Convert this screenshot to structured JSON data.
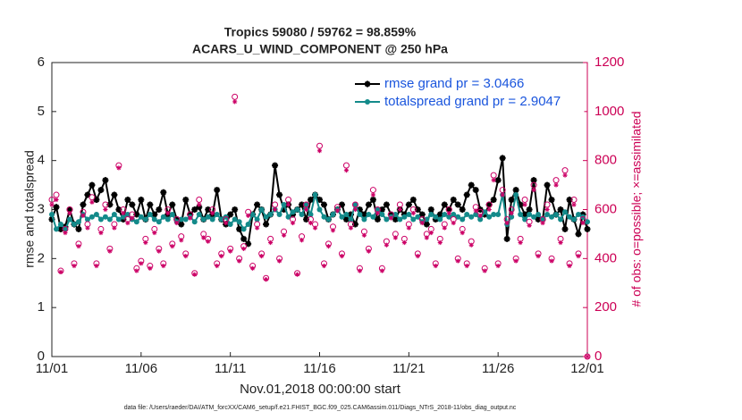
{
  "chart_data": {
    "type": "line",
    "title": "Tropics 59080 / 59762 = 98.859%",
    "subtitle": "ACARS_U_WIND_COMPONENT @ 250 hPa",
    "xlabel": "Nov.01,2018 00:00:00 start",
    "ylabel": "rmse and totalspread",
    "y2label": "# of obs: o=possible; ×=assimilated",
    "footnote": "data file: /Users/raeder/DAI/ATM_forcXX/CAM6_setup/f.e21.FHIST_BGC.f09_025.CAM6assim.011/Diags_NTrS_2018-11/obs_diag_output.nc",
    "xlim": [
      0,
      30
    ],
    "xticks": [
      {
        "value": 0,
        "label": "11/01"
      },
      {
        "value": 5,
        "label": "11/06"
      },
      {
        "value": 10,
        "label": "11/11"
      },
      {
        "value": 15,
        "label": "11/16"
      },
      {
        "value": 20,
        "label": "11/21"
      },
      {
        "value": 25,
        "label": "11/26"
      },
      {
        "value": 30,
        "label": "12/01"
      }
    ],
    "ylim": [
      0,
      6
    ],
    "yticks": [
      0,
      1,
      2,
      3,
      4,
      5,
      6
    ],
    "y2lim": [
      0,
      1200
    ],
    "y2ticks": [
      0,
      200,
      400,
      600,
      800,
      1000,
      1200
    ],
    "y2color": "#cc0055",
    "legend": "upper right",
    "x": [
      0,
      0.25,
      0.5,
      0.75,
      1,
      1.25,
      1.5,
      1.75,
      2,
      2.25,
      2.5,
      2.75,
      3,
      3.25,
      3.5,
      3.75,
      4,
      4.25,
      4.5,
      4.75,
      5,
      5.25,
      5.5,
      5.75,
      6,
      6.25,
      6.5,
      6.75,
      7,
      7.25,
      7.5,
      7.75,
      8,
      8.25,
      8.5,
      8.75,
      9,
      9.25,
      9.5,
      9.75,
      10,
      10.25,
      10.5,
      10.75,
      11,
      11.25,
      11.5,
      11.75,
      12,
      12.25,
      12.5,
      12.75,
      13,
      13.25,
      13.5,
      13.75,
      14,
      14.25,
      14.5,
      14.75,
      15,
      15.25,
      15.5,
      15.75,
      16,
      16.25,
      16.5,
      16.75,
      17,
      17.25,
      17.5,
      17.75,
      18,
      18.25,
      18.5,
      18.75,
      19,
      19.25,
      19.5,
      19.75,
      20,
      20.25,
      20.5,
      20.75,
      21,
      21.25,
      21.5,
      21.75,
      22,
      22.25,
      22.5,
      22.75,
      23,
      23.25,
      23.5,
      23.75,
      24,
      24.25,
      24.5,
      24.75,
      25,
      25.25,
      25.5,
      25.75,
      26,
      26.25,
      26.5,
      26.75,
      27,
      27.25,
      27.5,
      27.75,
      28,
      28.25,
      28.5,
      28.75,
      29,
      29.25,
      29.5,
      29.75,
      30
    ],
    "series": [
      {
        "name": "rmse grand pr = 3.0466",
        "color": "#000000",
        "marker": "star",
        "values": [
          2.8,
          3.05,
          2.6,
          2.65,
          3.0,
          2.7,
          2.6,
          3.1,
          3.3,
          3.5,
          3.2,
          3.4,
          3.6,
          3.1,
          3.3,
          3.0,
          2.8,
          3.2,
          3.1,
          2.9,
          3.2,
          2.8,
          3.1,
          2.9,
          3.0,
          3.35,
          2.9,
          3.1,
          2.8,
          2.7,
          3.2,
          2.9,
          3.0,
          3.05,
          2.8,
          3.0,
          2.9,
          3.4,
          2.8,
          2.7,
          2.9,
          3.0,
          2.6,
          2.4,
          2.3,
          2.9,
          3.1,
          3.0,
          2.7,
          2.9,
          3.9,
          3.3,
          3.0,
          3.1,
          2.9,
          3.0,
          3.1,
          2.8,
          3.2,
          3.3,
          3.2,
          3.1,
          2.8,
          2.9,
          3.0,
          3.1,
          2.8,
          2.9,
          2.7,
          3.0,
          2.9,
          3.1,
          3.2,
          2.8,
          3.0,
          3.1,
          2.9,
          2.8,
          3.0,
          2.9,
          3.1,
          3.2,
          3.0,
          2.9,
          2.7,
          3.0,
          2.8,
          2.9,
          3.1,
          3.0,
          3.2,
          3.1,
          3.0,
          3.3,
          3.5,
          3.4,
          3.0,
          2.9,
          3.1,
          3.2,
          3.6,
          4.05,
          2.4,
          3.2,
          3.4,
          3.1,
          2.9,
          3.0,
          3.6,
          2.8,
          2.8,
          3.5,
          3.2,
          2.9,
          3.0,
          2.6,
          3.2,
          2.8,
          2.5,
          2.9,
          2.6
        ]
      },
      {
        "name": "totalspread grand pr = 2.9047",
        "color": "#138a8a",
        "marker": "dot",
        "values": [
          2.9,
          2.6,
          2.7,
          2.6,
          2.8,
          2.7,
          2.75,
          2.9,
          2.8,
          2.85,
          2.9,
          2.8,
          2.85,
          2.8,
          2.9,
          2.8,
          2.85,
          2.9,
          2.8,
          2.75,
          2.85,
          2.8,
          2.9,
          2.8,
          2.75,
          2.85,
          2.8,
          2.9,
          2.75,
          2.8,
          2.8,
          2.85,
          2.75,
          2.9,
          2.8,
          2.85,
          2.8,
          2.9,
          2.8,
          2.85,
          2.7,
          2.8,
          2.75,
          2.6,
          2.7,
          2.9,
          2.8,
          3.0,
          2.85,
          2.9,
          3.0,
          2.9,
          3.1,
          2.85,
          2.95,
          3.0,
          2.9,
          3.1,
          2.9,
          3.3,
          3.0,
          2.85,
          2.8,
          2.9,
          3.0,
          2.85,
          2.9,
          2.8,
          3.1,
          2.9,
          2.8,
          2.9,
          2.85,
          3.0,
          2.9,
          2.8,
          2.85,
          2.9,
          2.8,
          2.85,
          2.9,
          2.8,
          2.85,
          2.75,
          2.8,
          2.9,
          2.85,
          2.8,
          2.9,
          2.85,
          2.9,
          2.85,
          2.8,
          2.9,
          2.85,
          2.9,
          2.8,
          2.95,
          2.85,
          2.9,
          2.9,
          3.3,
          2.7,
          2.85,
          3.3,
          2.9,
          2.8,
          2.9,
          2.85,
          2.9,
          2.8,
          2.9,
          2.85,
          2.9,
          2.8,
          2.95,
          2.85,
          2.8,
          2.9,
          2.85,
          2.75
        ]
      },
      {
        "color": "#cc0066",
        "marker": "circle",
        "axis": "y2",
        "values": [
          640,
          660,
          350,
          520,
          600,
          380,
          460,
          590,
          540,
          650,
          380,
          520,
          620,
          440,
          540,
          780,
          600,
          560,
          580,
          360,
          390,
          480,
          370,
          520,
          440,
          380,
          600,
          460,
          560,
          490,
          420,
          580,
          340,
          640,
          500,
          480,
          600,
          380,
          420,
          560,
          440,
          1060,
          400,
          450,
          590,
          370,
          540,
          420,
          320,
          480,
          620,
          400,
          510,
          640,
          560,
          340,
          490,
          620,
          560,
          540,
          860,
          380,
          460,
          530,
          610,
          420,
          780,
          540,
          620,
          360,
          510,
          440,
          680,
          600,
          360,
          470,
          580,
          500,
          620,
          480,
          540,
          600,
          420,
          560,
          500,
          520,
          380,
          480,
          540,
          600,
          560,
          400,
          520,
          380,
          470,
          610,
          590,
          360,
          620,
          740,
          380,
          680,
          560,
          600,
          400,
          480,
          640,
          550,
          700,
          420,
          560,
          620,
          400,
          720,
          480,
          760,
          380,
          640,
          420,
          560,
          0
        ]
      },
      {
        "color": "#cc0066",
        "marker": "asterisk",
        "axis": "y2",
        "values": [
          620,
          640,
          345,
          505,
          585,
          370,
          450,
          575,
          525,
          630,
          370,
          505,
          600,
          430,
          525,
          770,
          585,
          545,
          565,
          350,
          380,
          465,
          360,
          505,
          430,
          370,
          585,
          450,
          545,
          475,
          410,
          565,
          335,
          620,
          485,
          470,
          585,
          370,
          410,
          545,
          430,
          1040,
          390,
          440,
          575,
          360,
          525,
          410,
          315,
          465,
          600,
          390,
          495,
          620,
          545,
          335,
          475,
          600,
          545,
          525,
          840,
          370,
          450,
          515,
          595,
          410,
          760,
          525,
          600,
          350,
          495,
          430,
          660,
          585,
          350,
          455,
          565,
          485,
          600,
          465,
          525,
          585,
          410,
          545,
          485,
          505,
          370,
          465,
          525,
          585,
          545,
          390,
          505,
          370,
          455,
          595,
          575,
          350,
          600,
          720,
          370,
          660,
          545,
          585,
          390,
          465,
          620,
          535,
          680,
          410,
          545,
          600,
          390,
          700,
          465,
          740,
          370,
          620,
          410,
          545,
          0
        ]
      }
    ]
  }
}
